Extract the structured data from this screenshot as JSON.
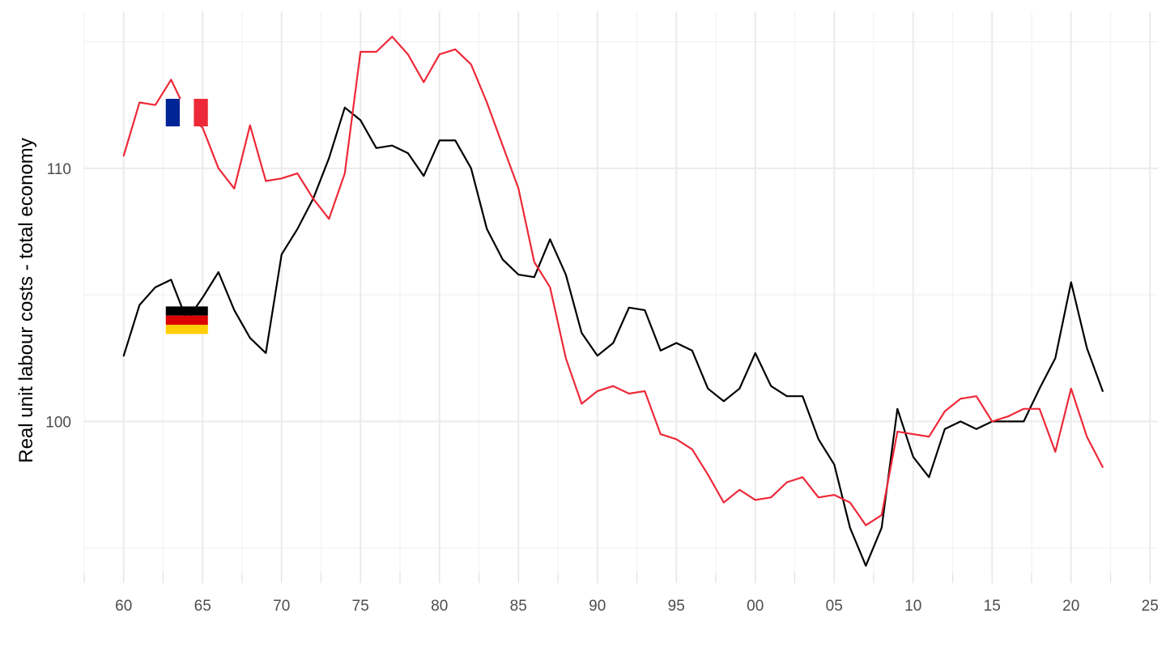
{
  "chart_data": {
    "type": "line",
    "title": "",
    "xlabel": "",
    "ylabel": "Real unit labour costs - total economy",
    "xlim": [
      1957.5,
      2025.5
    ],
    "ylim": [
      94,
      116.2
    ],
    "x_ticks": [
      1960,
      1965,
      1970,
      1975,
      1980,
      1985,
      1990,
      1995,
      2000,
      2005,
      2010,
      2015,
      2020,
      2025
    ],
    "x_tick_labels": [
      "60",
      "65",
      "70",
      "75",
      "80",
      "85",
      "90",
      "95",
      "00",
      "05",
      "10",
      "15",
      "20",
      "25"
    ],
    "y_ticks": [
      100,
      110
    ],
    "y_tick_labels": [
      "100",
      "110"
    ],
    "y_minor_ticks": [
      95,
      105,
      115
    ],
    "grid": true,
    "legend": "flag icons placed near series start",
    "x": [
      1960,
      1961,
      1962,
      1963,
      1964,
      1965,
      1966,
      1967,
      1968,
      1969,
      1970,
      1971,
      1972,
      1973,
      1974,
      1975,
      1976,
      1977,
      1978,
      1979,
      1980,
      1981,
      1982,
      1983,
      1984,
      1985,
      1986,
      1987,
      1988,
      1989,
      1990,
      1991,
      1992,
      1993,
      1994,
      1995,
      1996,
      1997,
      1998,
      1999,
      2000,
      2001,
      2002,
      2003,
      2004,
      2005,
      2006,
      2007,
      2008,
      2009,
      2010,
      2011,
      2012,
      2013,
      2014,
      2015,
      2016,
      2017,
      2018,
      2019,
      2020,
      2021,
      2022
    ],
    "series": [
      {
        "flag": "germany-flag",
        "color": "#000000",
        "values": [
          102.6,
          104.6,
          105.3,
          105.6,
          104.0,
          104.9,
          105.9,
          104.4,
          103.3,
          102.7,
          106.6,
          107.6,
          108.8,
          110.4,
          112.4,
          111.9,
          110.8,
          110.9,
          110.6,
          109.7,
          111.1,
          111.1,
          110.0,
          107.6,
          106.4,
          105.8,
          105.7,
          107.2,
          105.8,
          103.5,
          102.6,
          103.1,
          104.5,
          104.4,
          102.8,
          103.1,
          102.8,
          101.3,
          100.8,
          101.3,
          102.7,
          101.4,
          101.0,
          101.0,
          99.3,
          98.3,
          95.8,
          94.3,
          95.8,
          100.5,
          98.6,
          97.8,
          99.7,
          100.0,
          99.7,
          100.0,
          100.0,
          100.0,
          101.3,
          102.5,
          105.5,
          102.9,
          101.2
        ]
      },
      {
        "flag": "france-flag",
        "color": "#ed2939",
        "values": [
          110.5,
          112.6,
          112.5,
          113.5,
          112.2,
          111.6,
          110.0,
          109.2,
          111.7,
          109.5,
          109.6,
          109.8,
          108.8,
          108.0,
          109.8,
          114.6,
          114.6,
          115.2,
          114.5,
          113.4,
          114.5,
          114.7,
          114.1,
          112.6,
          110.9,
          109.2,
          106.3,
          105.3,
          102.5,
          100.7,
          101.2,
          101.4,
          101.1,
          101.2,
          99.5,
          99.3,
          98.9,
          97.9,
          96.8,
          97.3,
          96.9,
          97.0,
          97.6,
          97.8,
          97.0,
          97.1,
          96.8,
          95.9,
          96.3,
          99.6,
          99.5,
          99.4,
          100.4,
          100.9,
          101.0,
          100.0,
          100.2,
          100.5,
          100.5,
          98.8,
          101.3,
          99.4,
          98.2
        ]
      }
    ]
  }
}
